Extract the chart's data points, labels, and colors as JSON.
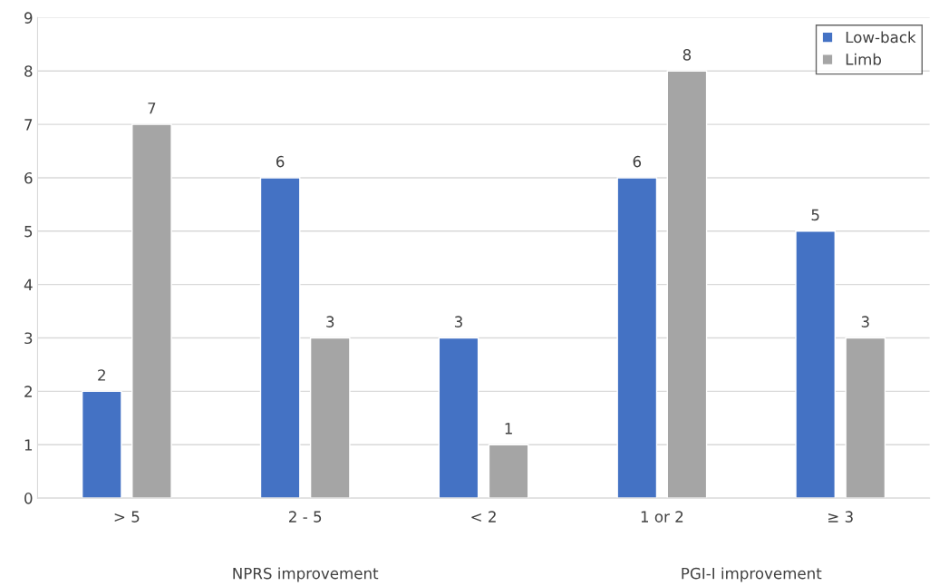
{
  "chart_data": {
    "type": "bar",
    "categories": [
      "> 5",
      "2 - 5",
      "< 2",
      "1 or 2",
      "≥ 3"
    ],
    "series": [
      {
        "name": "Low-back",
        "color": "#4472c4",
        "values": [
          2,
          6,
          3,
          6,
          5
        ]
      },
      {
        "name": "Limb",
        "color": "#a5a5a5",
        "values": [
          7,
          3,
          1,
          8,
          3
        ]
      }
    ],
    "ylim": [
      0,
      9
    ],
    "yticks": [
      0,
      1,
      2,
      3,
      4,
      5,
      6,
      7,
      8,
      9
    ],
    "grid": "y",
    "legend": "top right",
    "data_labels": true,
    "annotations": [
      "NPRS improvement",
      "PGI-I improvement"
    ]
  }
}
